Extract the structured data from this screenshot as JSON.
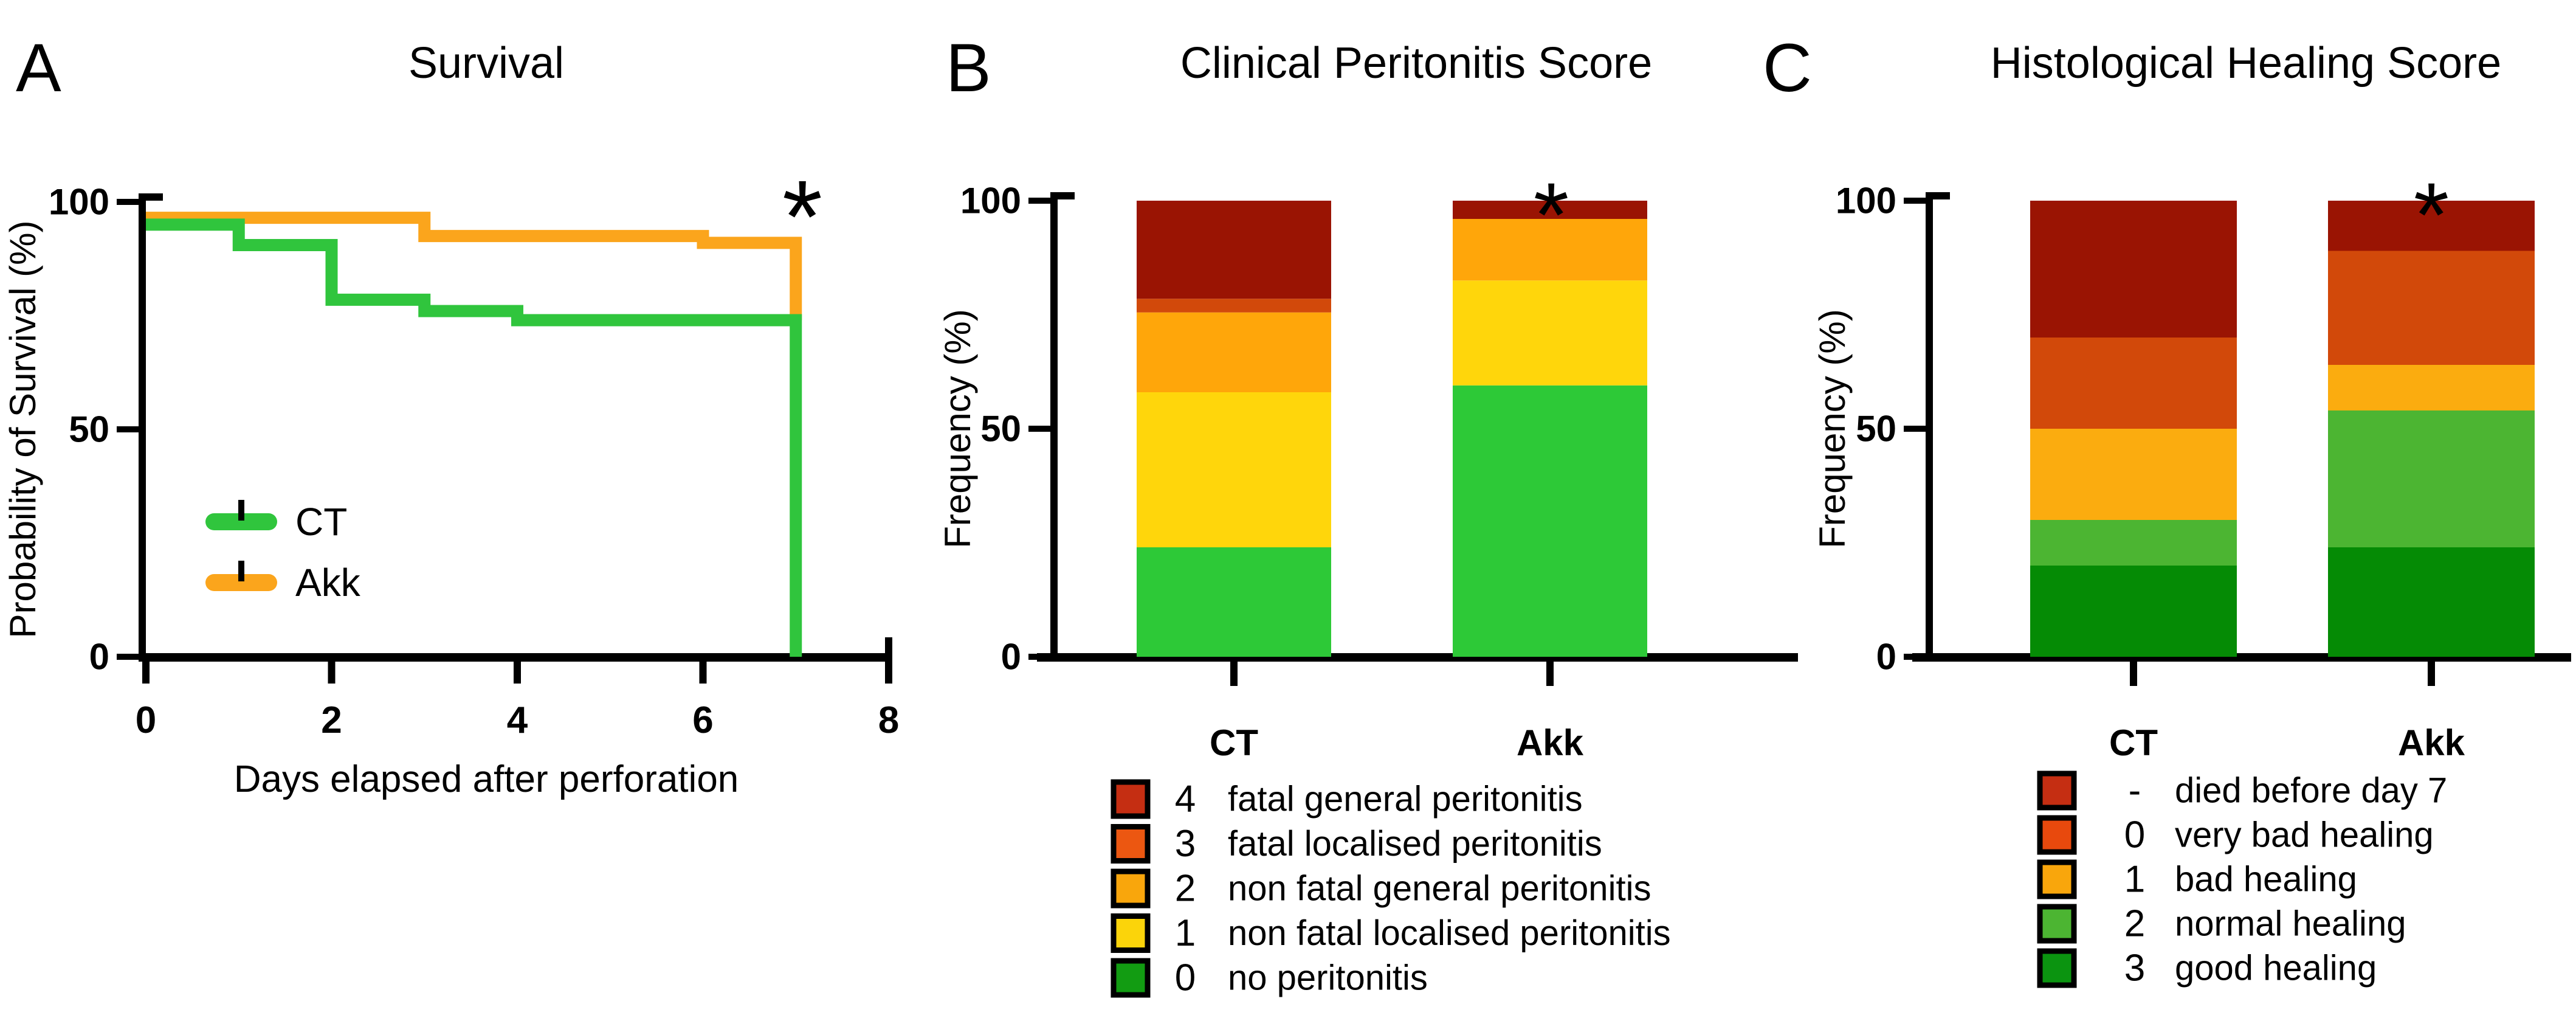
{
  "figure": {
    "background": "#ffffff",
    "description_labels": {
      "ct": "CT",
      "akk": "Akk",
      "significance_marker": "*"
    }
  },
  "chart_data": [
    {
      "id": "A",
      "type": "line",
      "subtype": "kaplan-meier-step",
      "panel_label": "A",
      "title": "Survival",
      "xlabel": "Days elapsed after perforation",
      "ylabel": "Probability of Survival (%)",
      "xlim": [
        0,
        8
      ],
      "ylim": [
        0,
        100
      ],
      "xticks": [
        0,
        2,
        4,
        6,
        8
      ],
      "yticks": [
        0,
        50,
        100
      ],
      "grid": false,
      "annotation": "*",
      "annotation_position": "top-right near day 7",
      "legend_position": "inside lower-left",
      "series": [
        {
          "name": "Akk",
          "color": "#FBA51C",
          "points": [
            [
              0,
              96.5
            ],
            [
              3,
              96.5
            ],
            [
              3,
              92.5
            ],
            [
              6,
              92.5
            ],
            [
              6,
              91
            ],
            [
              7,
              91
            ],
            [
              7,
              74
            ]
          ]
        },
        {
          "name": "CT",
          "color": "#30C53D",
          "points": [
            [
              0,
              95
            ],
            [
              1,
              95
            ],
            [
              1,
              90.5
            ],
            [
              2,
              90.5
            ],
            [
              2,
              78.5
            ],
            [
              3,
              78.5
            ],
            [
              3,
              76
            ],
            [
              4,
              76
            ],
            [
              4,
              74
            ],
            [
              7,
              74
            ],
            [
              7,
              0
            ]
          ]
        }
      ],
      "legend": [
        {
          "label": "CT",
          "color": "#30C53D"
        },
        {
          "label": "Akk",
          "color": "#FBA51C"
        }
      ]
    },
    {
      "id": "B",
      "type": "bar",
      "subtype": "stacked-percent",
      "panel_label": "B",
      "title": "Clinical Peritonitis Score",
      "ylabel": "Frequency (%)",
      "ylim": [
        0,
        100
      ],
      "yticks": [
        0,
        50,
        100
      ],
      "categories": [
        "CT",
        "Akk"
      ],
      "annotation": "*",
      "annotation_over": "Akk",
      "series": [
        {
          "key": "0",
          "label": "no peritonitis",
          "bar_color": "#2DC937",
          "swatch_color": "#129C12",
          "values": [
            24,
            59.5
          ]
        },
        {
          "key": "1",
          "label": "non fatal localised peritonitis",
          "bar_color": "#FFD60B",
          "swatch_color": "#FBD40A",
          "values": [
            34,
            23
          ]
        },
        {
          "key": "2",
          "label": "non fatal general peritonitis",
          "bar_color": "#FFA60A",
          "swatch_color": "#F9A60C",
          "values": [
            17.5,
            13.5
          ]
        },
        {
          "key": "3",
          "label": "fatal localised peritonitis",
          "bar_color": "#D2490A",
          "swatch_color": "#EC5711",
          "values": [
            3,
            0
          ]
        },
        {
          "key": "4",
          "label": "fatal general peritonitis",
          "bar_color": "#9A1403",
          "swatch_color": "#C52E12",
          "values": [
            21.5,
            4
          ]
        }
      ],
      "legend_order": [
        "4",
        "3",
        "2",
        "1",
        "0"
      ]
    },
    {
      "id": "C",
      "type": "bar",
      "subtype": "stacked-percent",
      "panel_label": "C",
      "title": "Histological Healing Score",
      "ylabel": "Frequency (%)",
      "ylim": [
        0,
        100
      ],
      "yticks": [
        0,
        50,
        100
      ],
      "categories": [
        "CT",
        "Akk"
      ],
      "annotation": "*",
      "annotation_over": "Akk",
      "series": [
        {
          "key": "3",
          "label": "good healing",
          "bar_color": "#058B05",
          "swatch_color": "#0B9410",
          "values": [
            20,
            24
          ]
        },
        {
          "key": "2",
          "label": "normal healing",
          "bar_color": "#4CB532",
          "swatch_color": "#4CB532",
          "values": [
            10,
            30
          ]
        },
        {
          "key": "1",
          "label": "bad healing",
          "bar_color": "#FBAC0F",
          "swatch_color": "#F9A60C",
          "values": [
            20,
            10
          ]
        },
        {
          "key": "0",
          "label": "very bad healing",
          "bar_color": "#D2490A",
          "swatch_color": "#E8490D",
          "values": [
            20,
            25
          ]
        },
        {
          "key": "-",
          "label": "died before day 7",
          "bar_color": "#9A1403",
          "swatch_color": "#C52E12",
          "values": [
            30,
            11
          ]
        }
      ],
      "legend_order": [
        "-",
        "0",
        "1",
        "2",
        "3"
      ]
    }
  ]
}
